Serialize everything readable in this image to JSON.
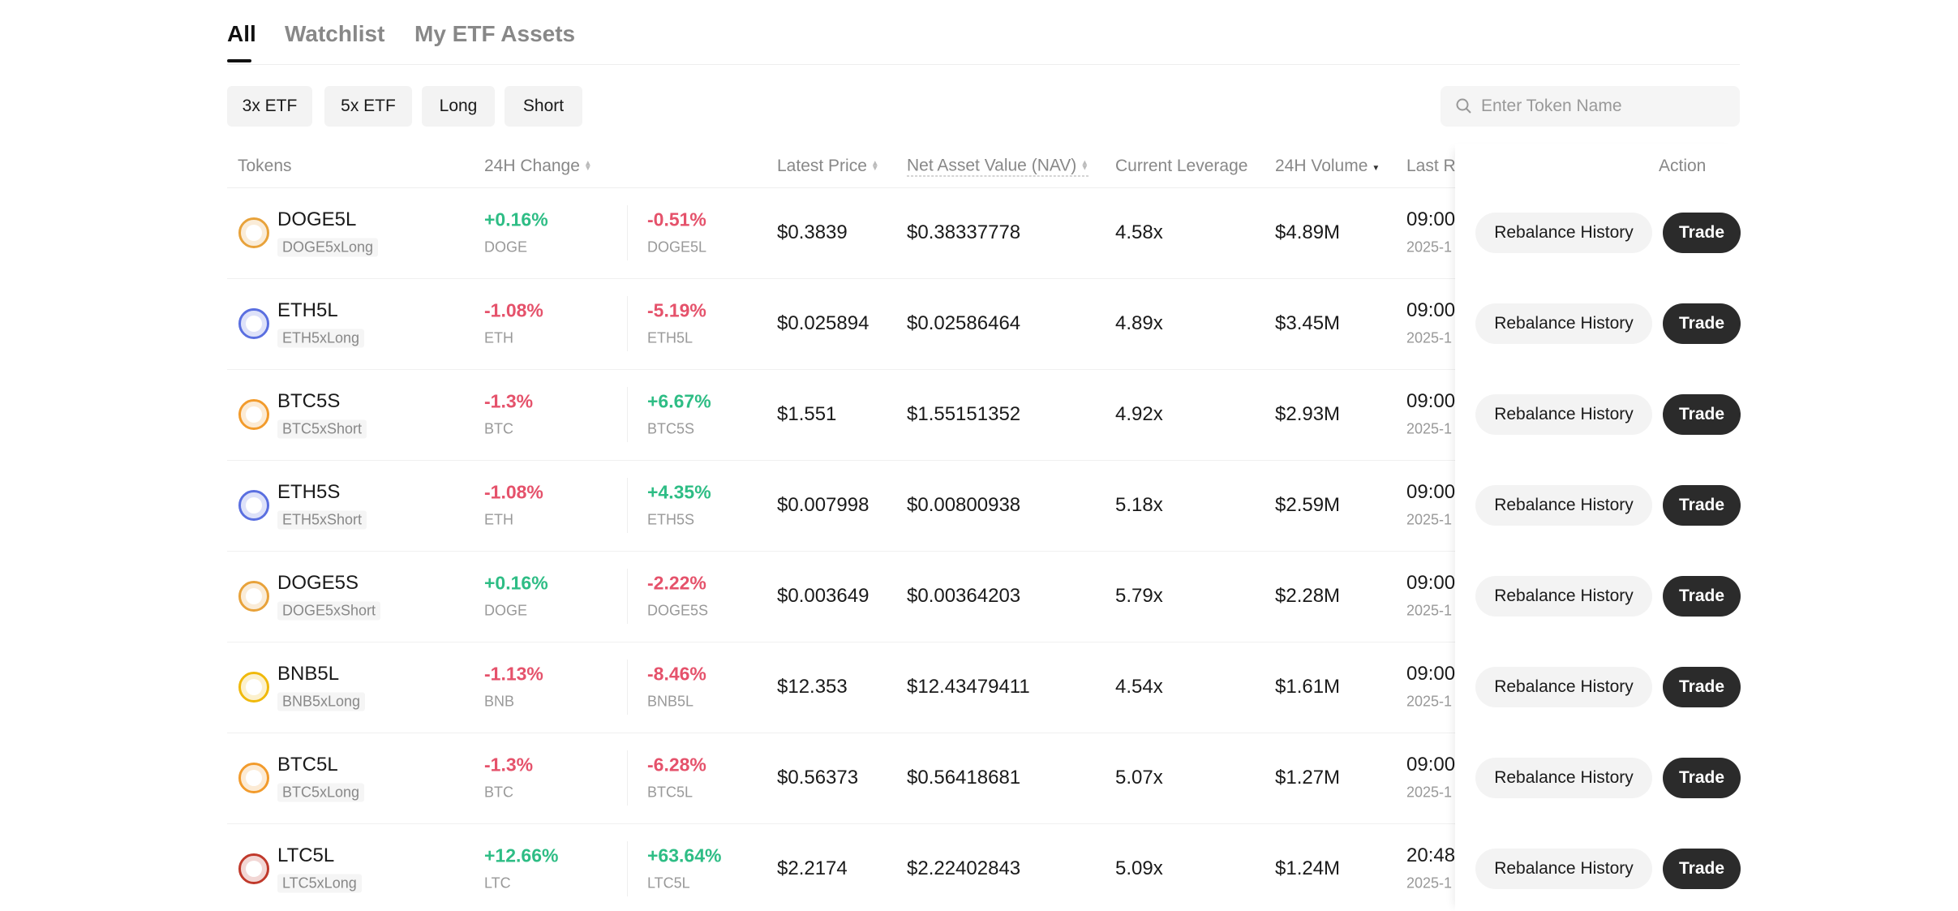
{
  "tabs": [
    "All",
    "Watchlist",
    "My ETF Assets"
  ],
  "filters": [
    "3x ETF",
    "5x ETF",
    "Long",
    "Short"
  ],
  "search_placeholder": "Enter Token Name",
  "table": {
    "headers": {
      "tokens": "Tokens",
      "change": "24H Change",
      "price": "Latest Price",
      "nav": "Net Asset Value (NAV)",
      "leverage": "Current Leverage",
      "volume": "24H Volume",
      "last": "Last R",
      "action": "Action"
    },
    "actions": {
      "rebalance": "Rebalance History",
      "trade": "Trade"
    },
    "rows": [
      {
        "token": "DOGE5L",
        "name": "DOGE5xLong",
        "change1": "+0.16%",
        "base": "DOGE",
        "change2": "-0.51%",
        "etf": "DOGE5L",
        "price": "$0.3839",
        "nav": "$0.38337778",
        "leverage": "4.58x",
        "volume": "$4.89M",
        "time": "09:00",
        "date": "2025-1"
      },
      {
        "token": "ETH5L",
        "name": "ETH5xLong",
        "change1": "-1.08%",
        "base": "ETH",
        "change2": "-5.19%",
        "etf": "ETH5L",
        "price": "$0.025894",
        "nav": "$0.02586464",
        "leverage": "4.89x",
        "volume": "$3.45M",
        "time": "09:00",
        "date": "2025-1"
      },
      {
        "token": "BTC5S",
        "name": "BTC5xShort",
        "change1": "-1.3%",
        "base": "BTC",
        "change2": "+6.67%",
        "etf": "BTC5S",
        "price": "$1.551",
        "nav": "$1.55151352",
        "leverage": "4.92x",
        "volume": "$2.93M",
        "time": "09:00",
        "date": "2025-1"
      },
      {
        "token": "ETH5S",
        "name": "ETH5xShort",
        "change1": "-1.08%",
        "base": "ETH",
        "change2": "+4.35%",
        "etf": "ETH5S",
        "price": "$0.007998",
        "nav": "$0.00800938",
        "leverage": "5.18x",
        "volume": "$2.59M",
        "time": "09:00",
        "date": "2025-1"
      },
      {
        "token": "DOGE5S",
        "name": "DOGE5xShort",
        "change1": "+0.16%",
        "base": "DOGE",
        "change2": "-2.22%",
        "etf": "DOGE5S",
        "price": "$0.003649",
        "nav": "$0.00364203",
        "leverage": "5.79x",
        "volume": "$2.28M",
        "time": "09:00",
        "date": "2025-1"
      },
      {
        "token": "BNB5L",
        "name": "BNB5xLong",
        "change1": "-1.13%",
        "base": "BNB",
        "change2": "-8.46%",
        "etf": "BNB5L",
        "price": "$12.353",
        "nav": "$12.43479411",
        "leverage": "4.54x",
        "volume": "$1.61M",
        "time": "09:00",
        "date": "2025-1"
      },
      {
        "token": "BTC5L",
        "name": "BTC5xLong",
        "change1": "-1.3%",
        "base": "BTC",
        "change2": "-6.28%",
        "etf": "BTC5L",
        "price": "$0.56373",
        "nav": "$0.56418681",
        "leverage": "5.07x",
        "volume": "$1.27M",
        "time": "09:00",
        "date": "2025-1"
      },
      {
        "token": "LTC5L",
        "name": "LTC5xLong",
        "change1": "+12.66%",
        "base": "LTC",
        "change2": "+63.64%",
        "etf": "LTC5L",
        "price": "$2.2174",
        "nav": "$2.22402843",
        "leverage": "5.09x",
        "volume": "$1.24M",
        "time": "20:48",
        "date": "2025-1"
      }
    ]
  }
}
